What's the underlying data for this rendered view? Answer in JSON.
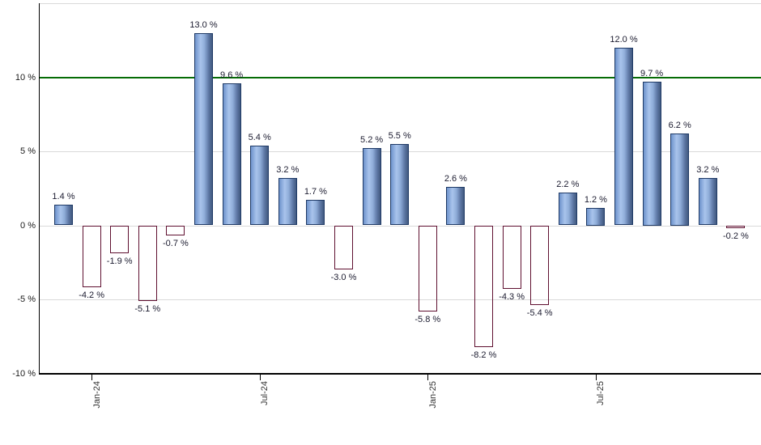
{
  "chart_data": {
    "type": "bar",
    "title": "",
    "categories": [
      "Dec-23",
      "Jan-24",
      "Feb-24",
      "Mar-24",
      "Apr-24",
      "May-24",
      "Jun-24",
      "Jul-24",
      "Aug-24",
      "Sep-24",
      "Oct-24",
      "Nov-24",
      "Dec-24",
      "Jan-25",
      "Feb-25",
      "Mar-25",
      "Apr-25",
      "May-25",
      "Jun-25",
      "Jul-25",
      "Aug-25",
      "Sep-25",
      "Oct-25",
      "Nov-25",
      "Dec-25"
    ],
    "values": [
      1.4,
      -4.2,
      -1.9,
      -5.1,
      -0.7,
      13.0,
      9.6,
      5.4,
      3.2,
      1.7,
      -3.0,
      5.2,
      5.5,
      -5.8,
      2.6,
      -8.2,
      -4.3,
      -5.4,
      2.2,
      1.2,
      12.0,
      9.7,
      6.2,
      3.2,
      -0.2
    ],
    "bar_labels": [
      "1.4 %",
      "-4.2 %",
      "-1.9 %",
      "-5.1 %",
      "-0.7 %",
      "13.0 %",
      "9.6 %",
      "5.4 %",
      "3.2 %",
      "1.7 %",
      "-3.0 %",
      "5.2 %",
      "5.5 %",
      "-5.8 %",
      "2.6 %",
      "-8.2 %",
      "-4.3 %",
      "-5.4 %",
      "2.2 %",
      "1.2 %",
      "12.0 %",
      "9.7 %",
      "6.2 %",
      "3.2 %",
      "-0.2 %"
    ],
    "ylabel": "",
    "xlabel": "",
    "ylim": [
      -10,
      15
    ],
    "grid": true,
    "y_ticks": [
      {
        "label": "10 %",
        "value": 10
      },
      {
        "label": "5 %",
        "value": 5
      },
      {
        "label": "0 %",
        "value": 0
      },
      {
        "label": "-5 %",
        "value": -5
      },
      {
        "label": "-10 %",
        "value": -10
      }
    ],
    "unlabeled_grid_values": [
      15,
      5,
      0,
      -5
    ],
    "x_ticks": [
      {
        "label": "Jan-24",
        "month_index": 1
      },
      {
        "label": "Jul-24",
        "month_index": 7
      },
      {
        "label": "Jan-25",
        "month_index": 13
      },
      {
        "label": "Jul-25",
        "month_index": 19
      }
    ],
    "reference_line": {
      "value": 10,
      "color": "#066c06"
    },
    "colors": {
      "positive_border": "#1f3a66",
      "positive_edge": "#6e93cc",
      "positive_light": "#a9c4ec",
      "positive_dark": "#41597f",
      "negative_border": "#5f1030",
      "negative_edge": "#9c2c4e",
      "negative_light": "#e06d8b",
      "negative_dark": "#7e1636",
      "grid": "#d9d9d9",
      "axis": "#000000",
      "value_label": "#1b1b2f",
      "tick_label": "#333333",
      "background": "#ffffff"
    }
  }
}
